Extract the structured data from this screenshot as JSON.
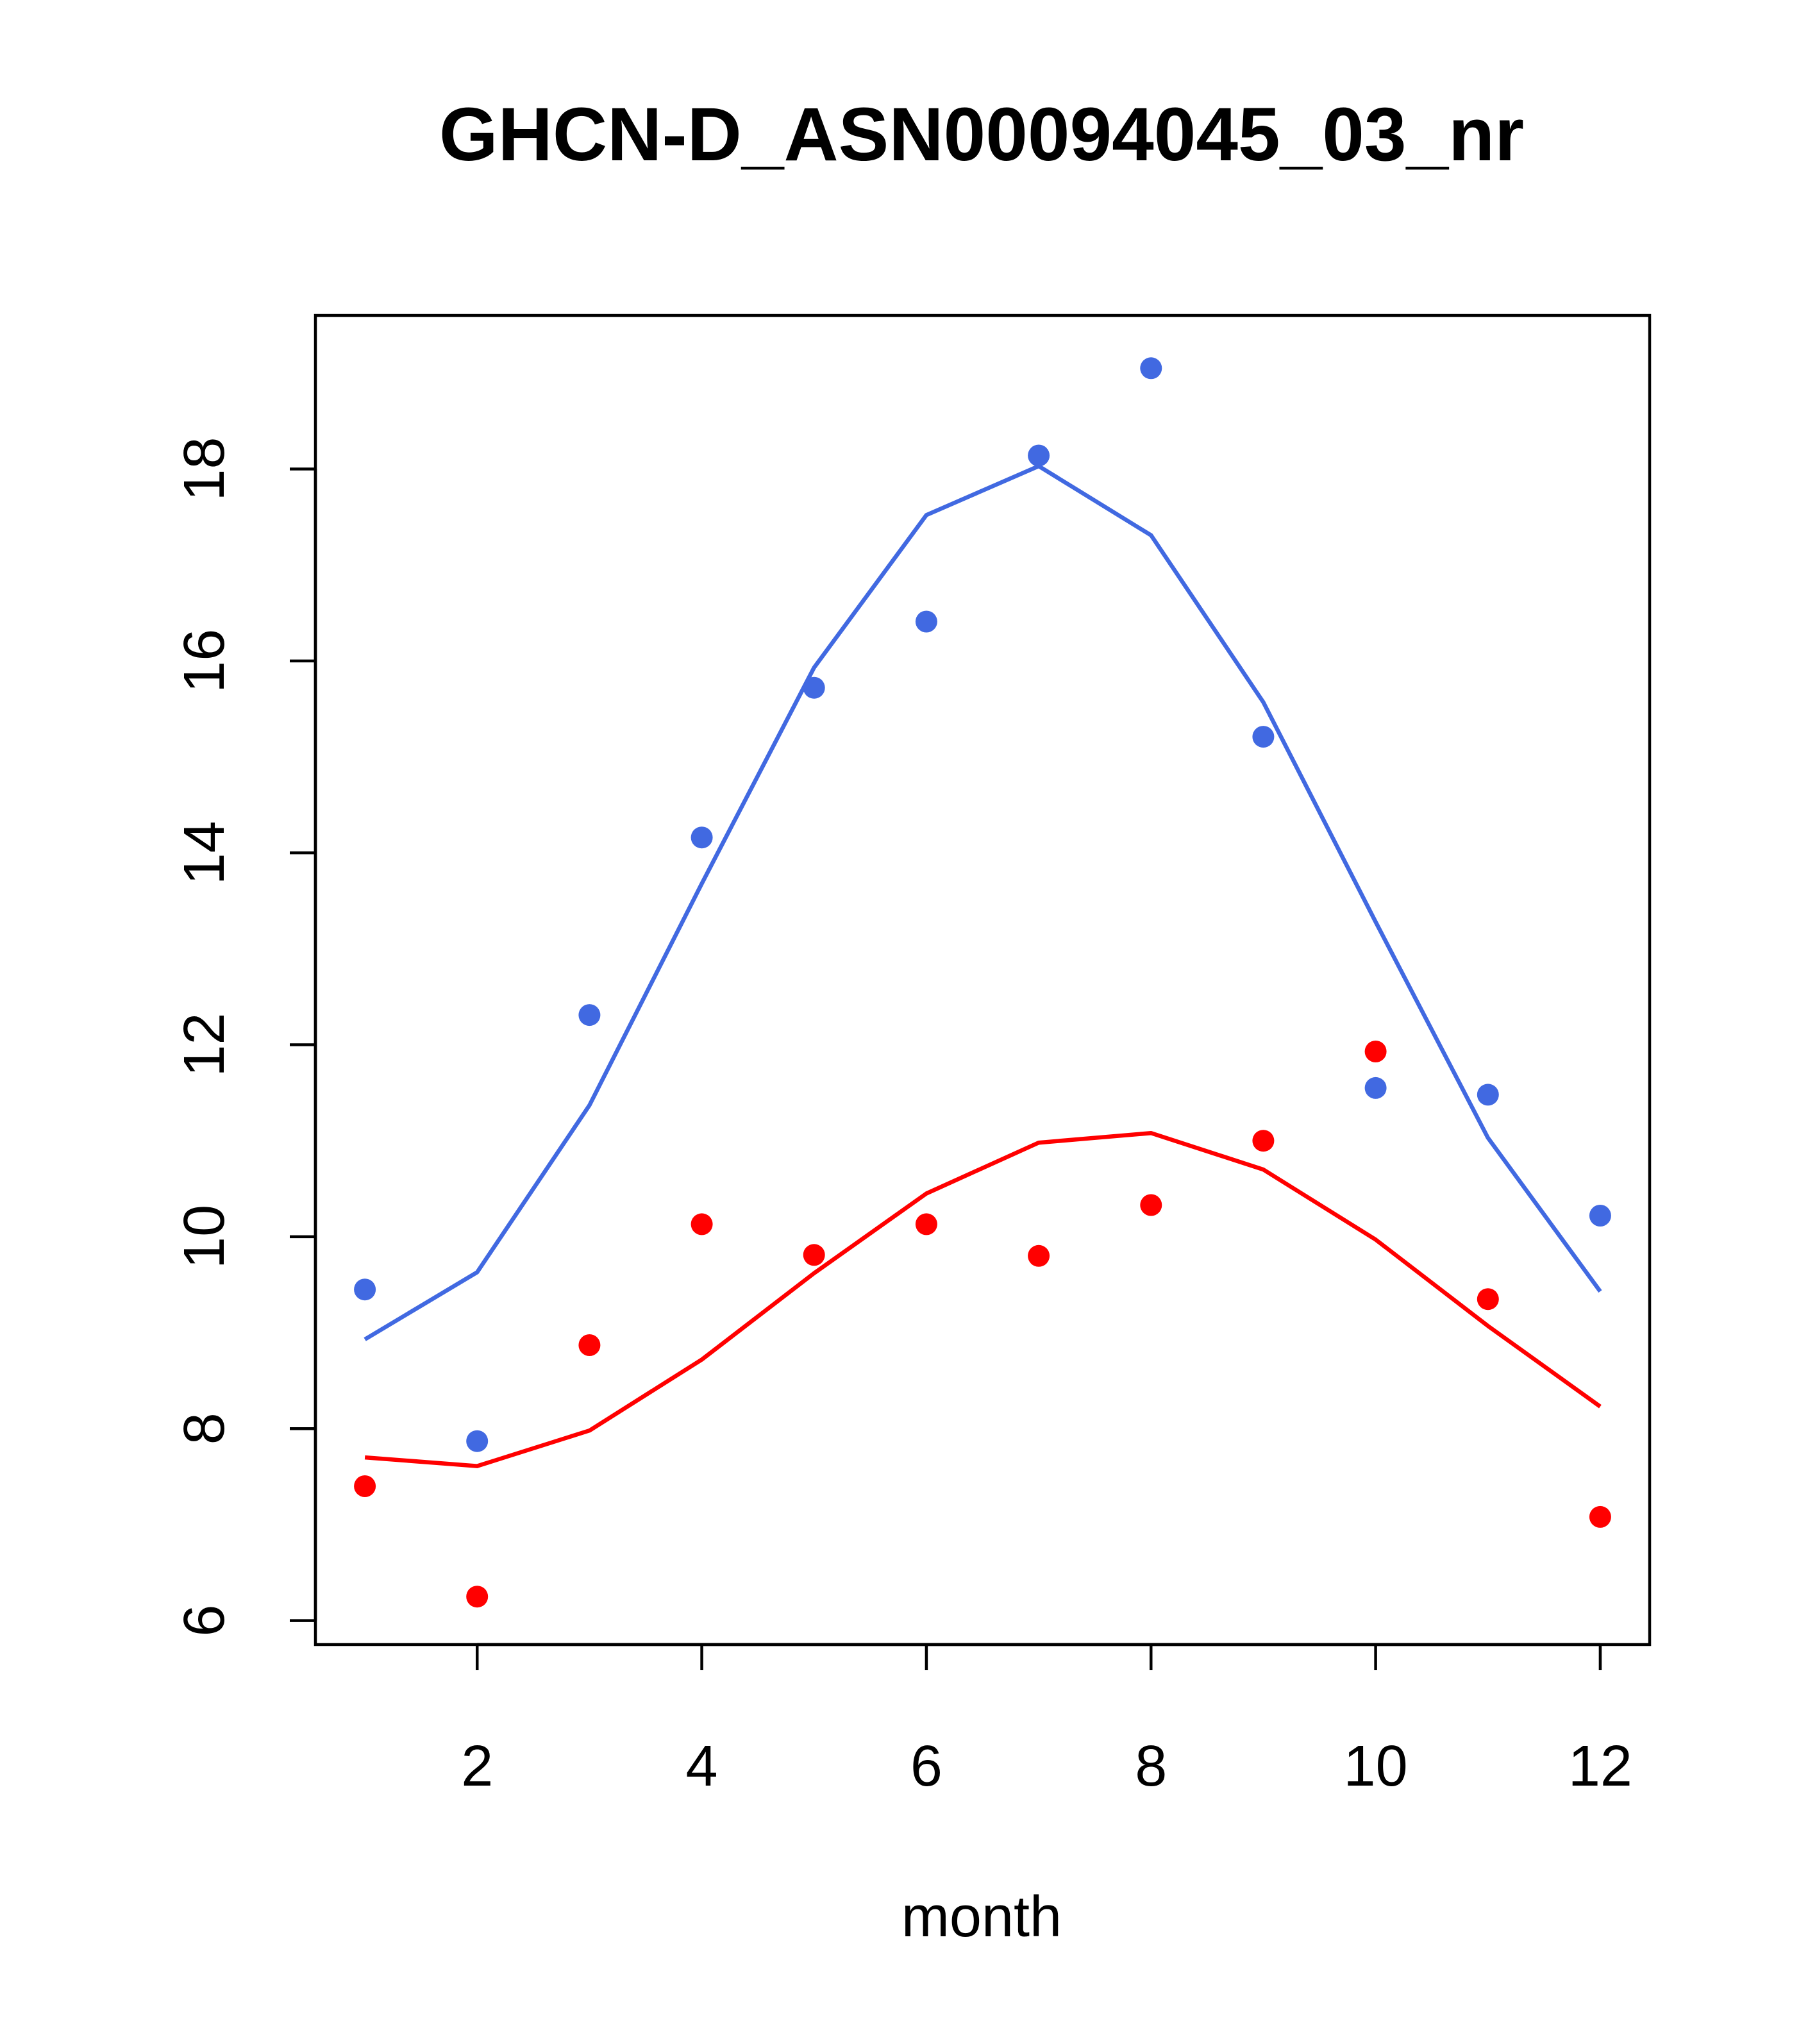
{
  "chart_data": {
    "type": "scatter",
    "title": "GHCN-D_ASN00094045_03_nr",
    "xlabel": "month",
    "ylabel": "",
    "xlim": [
      0.56,
      12.44
    ],
    "ylim": [
      5.75,
      19.6
    ],
    "xticks": [
      2,
      4,
      6,
      8,
      10,
      12
    ],
    "yticks": [
      6,
      8,
      10,
      12,
      14,
      16,
      18
    ],
    "x": [
      1,
      2,
      3,
      4,
      5,
      6,
      7,
      8,
      9,
      10,
      11,
      12
    ],
    "series": [
      {
        "color": "#4169E1",
        "points": [
          9.45,
          7.87,
          12.31,
          14.16,
          15.72,
          16.41,
          18.14,
          19.05,
          15.21,
          11.55,
          11.48,
          10.22
        ],
        "line": [
          8.93,
          9.63,
          11.37,
          13.68,
          15.93,
          17.52,
          18.03,
          17.31,
          15.57,
          13.28,
          11.03,
          9.43
        ]
      },
      {
        "color": "#FF0000",
        "points": [
          7.4,
          6.25,
          8.87,
          10.13,
          9.81,
          10.13,
          9.8,
          10.33,
          11.0,
          11.93,
          9.35,
          7.08
        ],
        "line": [
          7.7,
          7.61,
          7.98,
          8.72,
          9.62,
          10.45,
          10.98,
          11.08,
          10.7,
          9.97,
          9.07,
          8.23
        ]
      }
    ],
    "grid": false,
    "legend": "none"
  }
}
